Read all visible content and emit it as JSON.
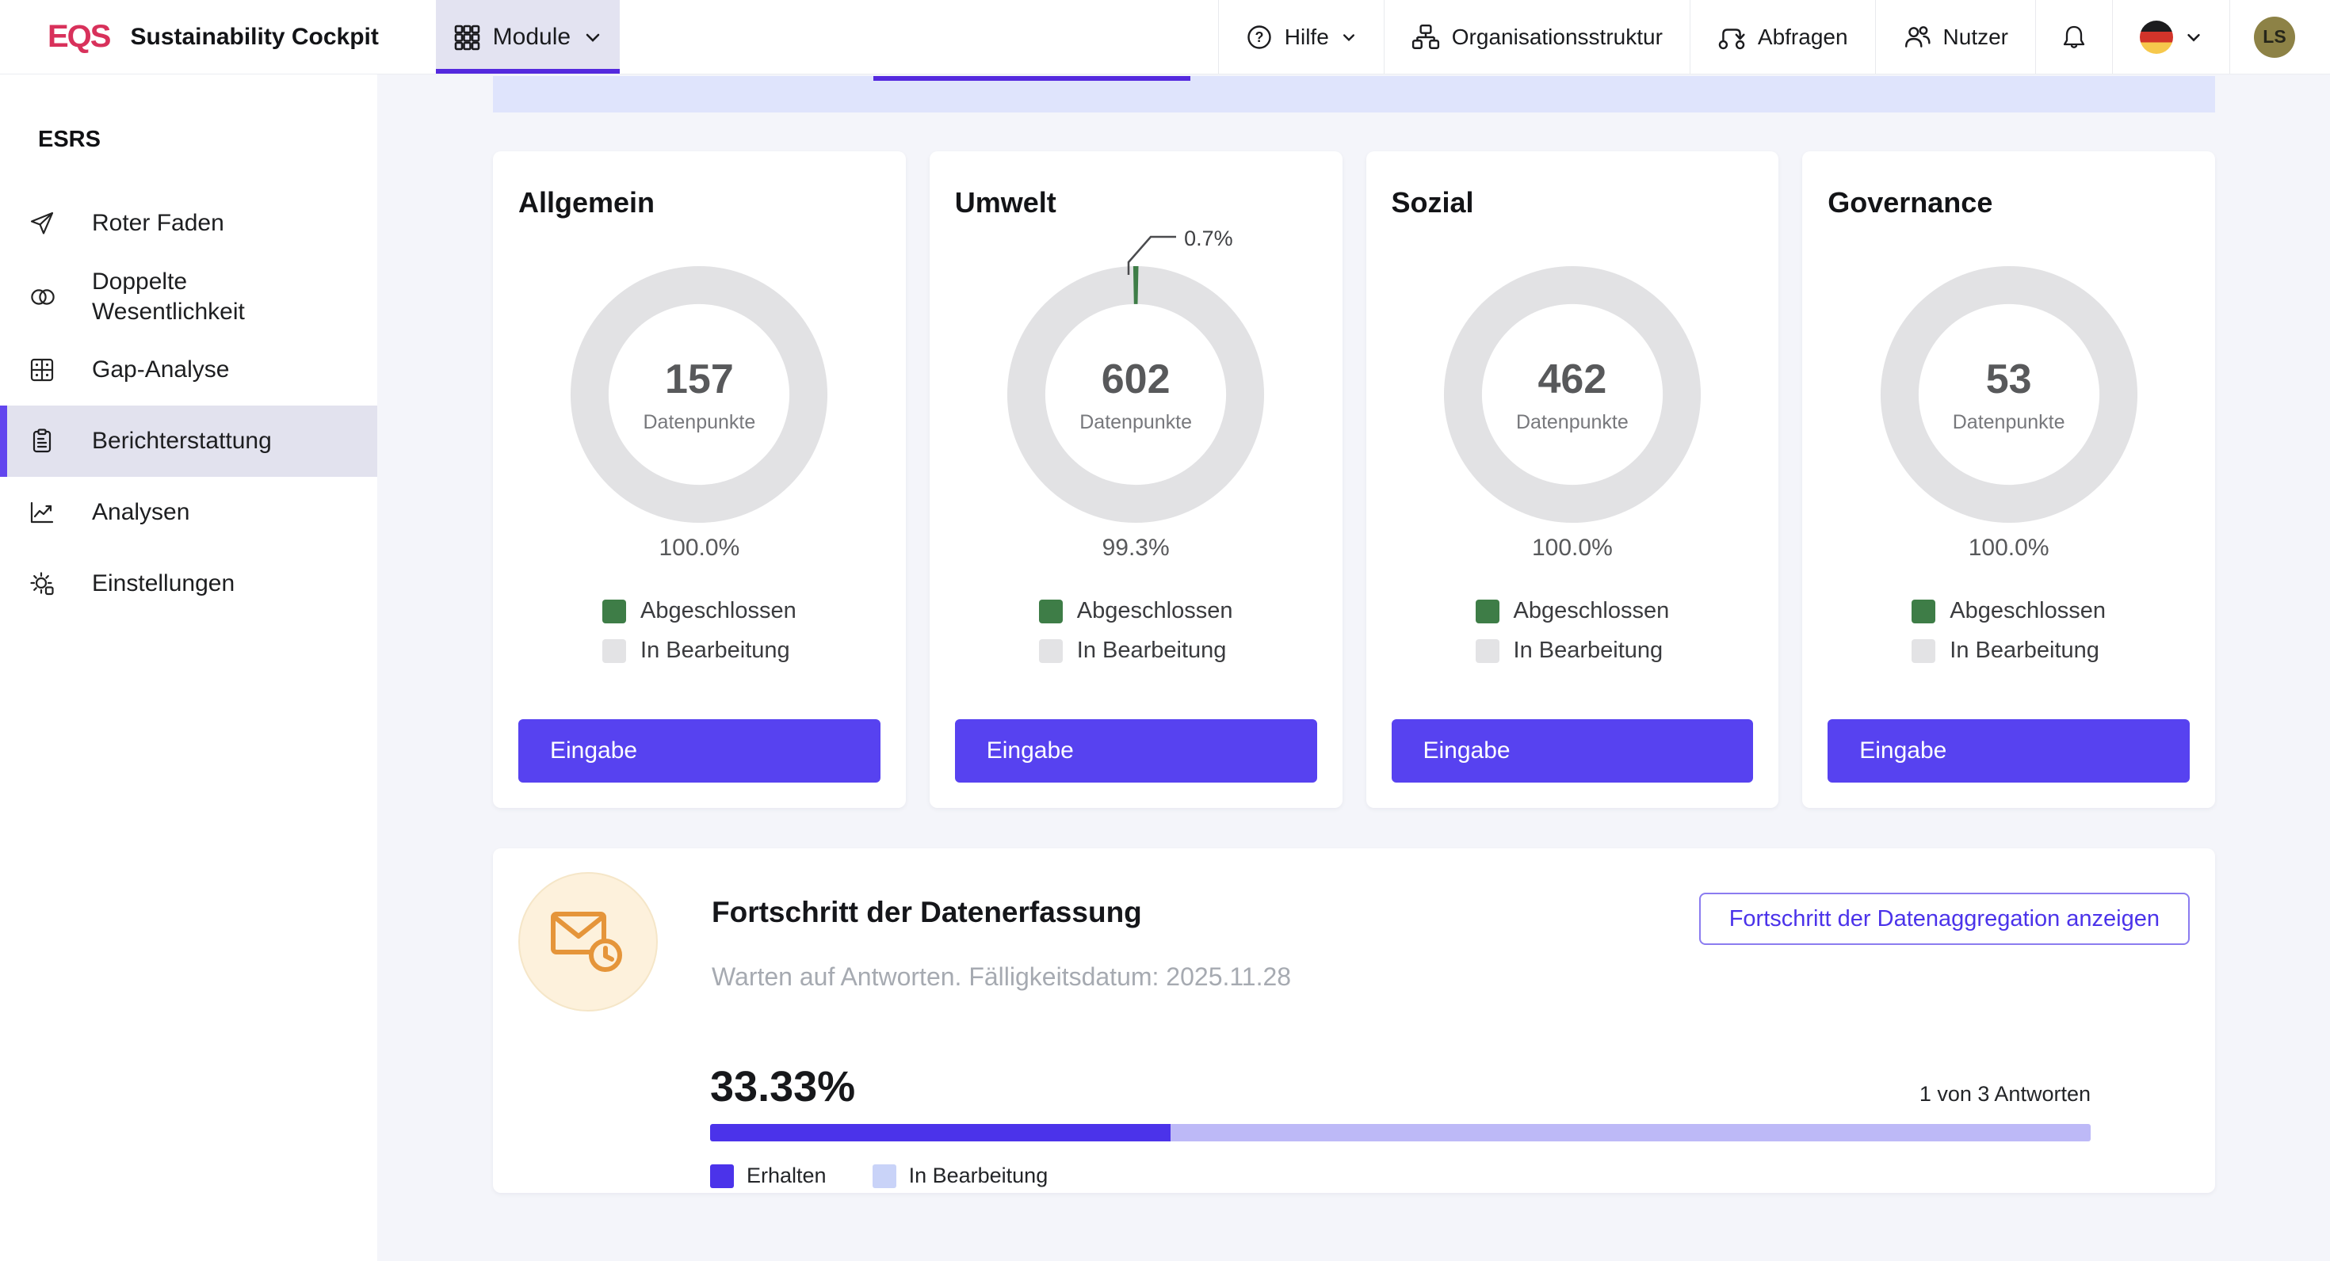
{
  "header": {
    "logo_text": "EQS",
    "app_title": "Sustainability Cockpit",
    "module_button": {
      "label": "Module"
    },
    "nav_items": [
      {
        "label": "Hilfe"
      },
      {
        "label": "Organisationsstruktur"
      },
      {
        "label": "Abfragen"
      },
      {
        "label": "Nutzer"
      }
    ],
    "avatar_initials": "LS"
  },
  "sidebar": {
    "section_title": "ESRS",
    "items": [
      {
        "label": "Roter Faden",
        "selected": false
      },
      {
        "label": "Doppelte Wesentlichkeit",
        "selected": false
      },
      {
        "label": "Gap-Analyse",
        "selected": false
      },
      {
        "label": "Berichterstattung",
        "selected": true
      },
      {
        "label": "Analysen",
        "selected": false
      },
      {
        "label": "Einstellungen",
        "selected": false
      }
    ]
  },
  "cards": [
    {
      "title": "Allgemein",
      "value": "157",
      "center_label": "Datenpunkte",
      "percent_label": "100.0%",
      "completed_pct": 0,
      "in_progress_pct": 100,
      "legend_completed": "Abgeschlossen",
      "legend_in_progress": "In Bearbeitung",
      "button_label": "Eingabe"
    },
    {
      "title": "Umwelt",
      "value": "602",
      "center_label": "Datenpunkte",
      "percent_label": "99.3%",
      "completed_pct": 0.7,
      "in_progress_pct": 99.3,
      "annotation_label": "0.7%",
      "legend_completed": "Abgeschlossen",
      "legend_in_progress": "In Bearbeitung",
      "button_label": "Eingabe"
    },
    {
      "title": "Sozial",
      "value": "462",
      "center_label": "Datenpunkte",
      "percent_label": "100.0%",
      "completed_pct": 0,
      "in_progress_pct": 100,
      "legend_completed": "Abgeschlossen",
      "legend_in_progress": "In Bearbeitung",
      "button_label": "Eingabe"
    },
    {
      "title": "Governance",
      "value": "53",
      "center_label": "Datenpunkte",
      "percent_label": "100.0%",
      "completed_pct": 0,
      "in_progress_pct": 100,
      "legend_completed": "Abgeschlossen",
      "legend_in_progress": "In Bearbeitung",
      "button_label": "Eingabe"
    }
  ],
  "progress_card": {
    "title": "Fortschritt der Datenerfassung",
    "subtitle": "Warten auf Antworten. Fälligkeitsdatum: 2025.11.28",
    "action_label": "Fortschritt der Datenaggregation anzeigen",
    "percent_label": "33.33%",
    "progress_value": 33.33,
    "answers_label": "1 von 3 Antworten",
    "legend": [
      {
        "label": "Erhalten",
        "color": "#4b33ea"
      },
      {
        "label": "In Bearbeitung",
        "color": "#c9d3f8"
      }
    ]
  },
  "colors": {
    "accent_purple": "#5429de",
    "button_purple": "#5742f0",
    "progress_purple": "#4b33ea",
    "progress_track": "#bdb9f7",
    "completed_green": "#3e7d47",
    "ring_gray": "#e2e2e4",
    "tab_strip_bg": "#dfe4fc",
    "logo_red": "#d8315b",
    "avatar_olive": "#8d8246"
  },
  "chart_data": [
    {
      "type": "pie",
      "title": "Allgemein",
      "labels": [
        "Abgeschlossen",
        "In Bearbeitung"
      ],
      "values": [
        0,
        100
      ],
      "colors": [
        "#3e7d47",
        "#e2e2e4"
      ],
      "center_value": 157,
      "center_label": "Datenpunkte",
      "percent_label": "100.0%"
    },
    {
      "type": "pie",
      "title": "Umwelt",
      "labels": [
        "Abgeschlossen",
        "In Bearbeitung"
      ],
      "values": [
        0.7,
        99.3
      ],
      "colors": [
        "#3e7d47",
        "#e2e2e4"
      ],
      "center_value": 602,
      "center_label": "Datenpunkte",
      "percent_label": "99.3%",
      "annotation": "0.7%"
    },
    {
      "type": "pie",
      "title": "Sozial",
      "labels": [
        "Abgeschlossen",
        "In Bearbeitung"
      ],
      "values": [
        0,
        100
      ],
      "colors": [
        "#3e7d47",
        "#e2e2e4"
      ],
      "center_value": 462,
      "center_label": "Datenpunkte",
      "percent_label": "100.0%"
    },
    {
      "type": "pie",
      "title": "Governance",
      "labels": [
        "Abgeschlossen",
        "In Bearbeitung"
      ],
      "values": [
        0,
        100
      ],
      "colors": [
        "#3e7d47",
        "#e2e2e4"
      ],
      "center_value": 53,
      "center_label": "Datenpunkte",
      "percent_label": "100.0%"
    },
    {
      "type": "bar",
      "title": "Fortschritt der Datenerfassung",
      "categories": [
        "Erhalten",
        "In Bearbeitung"
      ],
      "values": [
        33.33,
        66.67
      ],
      "annotation": "1 von 3 Antworten",
      "xlim": [
        0,
        100
      ]
    }
  ]
}
